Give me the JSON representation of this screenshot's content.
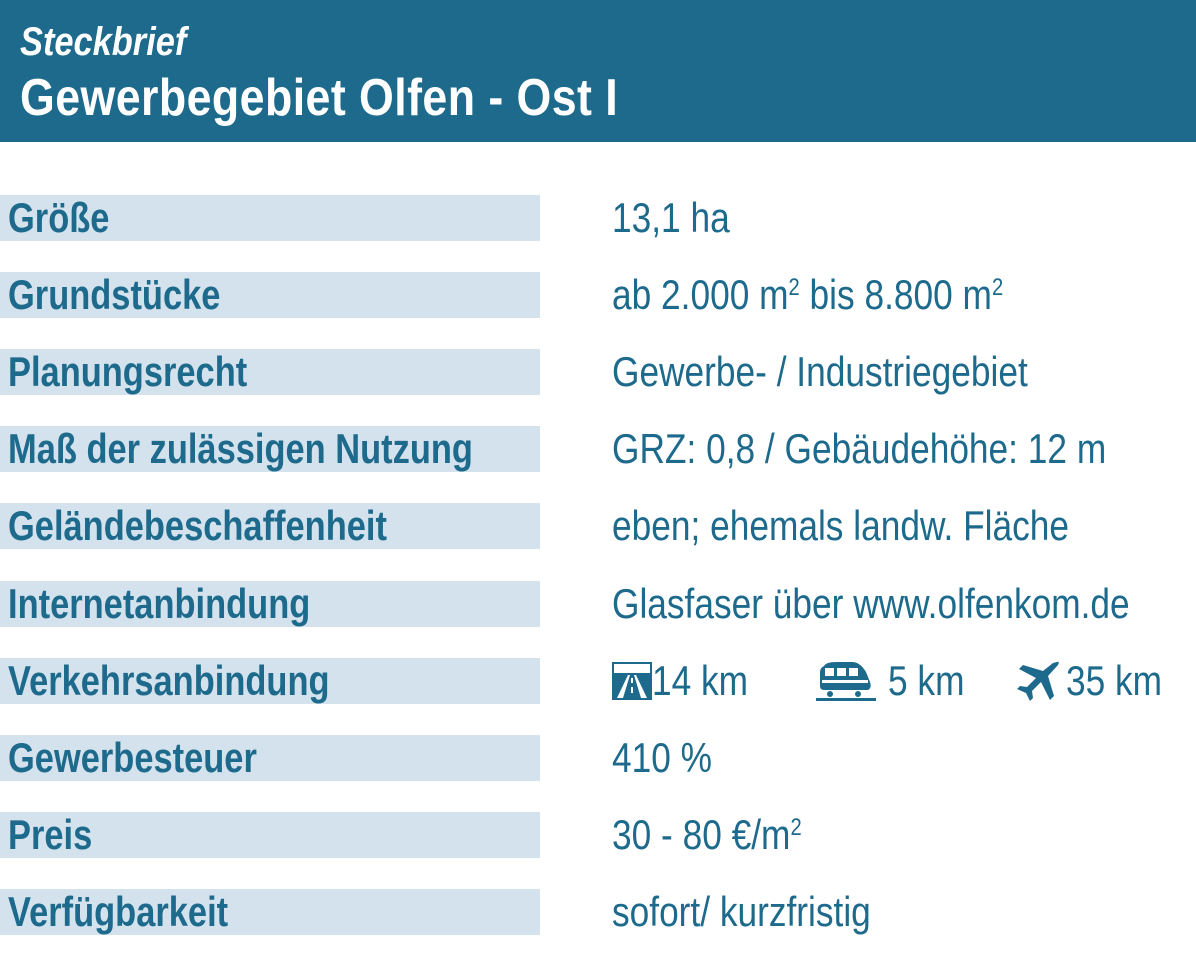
{
  "header": {
    "subtitle": "Steckbrief",
    "title": "Gewerbegebiet Olfen - Ost I"
  },
  "colors": {
    "brand": "#1d6a8c",
    "label_background": "#d3e2ec"
  },
  "rows": [
    {
      "label": "Größe",
      "value": "13,1 ha"
    },
    {
      "label": "Grundstücke",
      "value_parts": [
        "ab 2.000 m",
        "2",
        " bis 8.800 m",
        "2"
      ]
    },
    {
      "label": "Planungsrecht",
      "value": "Gewerbe- / Industriegebiet"
    },
    {
      "label": "Maß der zulässigen Nutzung",
      "value": "GRZ: 0,8 / Gebäudehöhe: 12 m"
    },
    {
      "label": "Geländebeschaffenheit",
      "value": "eben; ehemals landw. Fläche"
    },
    {
      "label": "Internetanbindung",
      "value": "Glasfaser über www.olfenkom.de"
    },
    {
      "label": "Verkehrsanbindung",
      "transport": [
        {
          "icon": "motorway-icon",
          "distance": "14 km"
        },
        {
          "icon": "train-icon",
          "distance": "5 km"
        },
        {
          "icon": "airplane-icon",
          "distance": "35 km"
        }
      ]
    },
    {
      "label": "Gewerbesteuer",
      "value": "410 %"
    },
    {
      "label": "Preis",
      "value_parts": [
        "30 - 80 €/m",
        "2"
      ]
    },
    {
      "label": "Verfügbarkeit",
      "value": "sofort/ kurzfristig"
    }
  ]
}
